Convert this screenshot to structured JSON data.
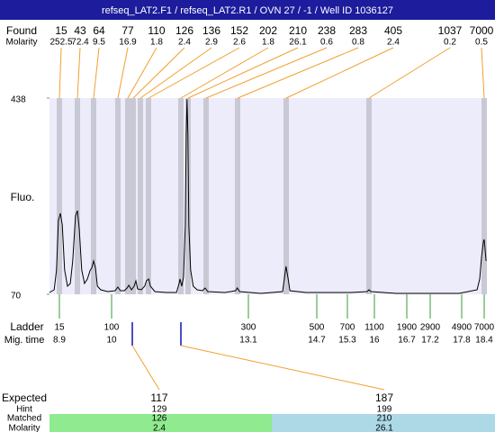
{
  "title": "refseq_LAT2.F1 / refseq_LAT2.R1 / OVN 27 / -1 / Well ID 1036127",
  "found": {
    "label": "Found",
    "molarity_label": "Molarity",
    "sizes": [
      15,
      43,
      64,
      77,
      110,
      126,
      136,
      152,
      202,
      210,
      238,
      283,
      405,
      1037,
      7000
    ],
    "molarity": [
      252.5,
      72.4,
      9.5,
      16.9,
      1.8,
      2.4,
      2.9,
      2.6,
      1.8,
      26.1,
      0.6,
      0.8,
      2.4,
      0.2,
      0.5
    ]
  },
  "chart_data": {
    "type": "line",
    "y_label": "Fluo.",
    "color": "#000000",
    "ylim": [
      70,
      438
    ],
    "yticks": [
      70,
      438
    ],
    "x": [
      8.69,
      8.79,
      8.84,
      8.88,
      8.92,
      8.96,
      9.01,
      9.07,
      9.13,
      9.18,
      9.24,
      9.28,
      9.32,
      9.37,
      9.43,
      9.49,
      9.55,
      9.58,
      9.62,
      9.66,
      9.7,
      9.77,
      9.92,
      10.08,
      10.14,
      10.2,
      10.29,
      10.35,
      10.39,
      10.45,
      10.51,
      10.55,
      10.59,
      10.67,
      10.75,
      10.79,
      10.84,
      10.88,
      10.98,
      11.24,
      11.47,
      11.53,
      11.55,
      11.59,
      11.63,
      11.67,
      11.69,
      11.71,
      11.73,
      11.75,
      11.79,
      11.85,
      11.94,
      12.06,
      12.12,
      12.18,
      12.57,
      12.81,
      12.85,
      12.9,
      13.39,
      13.9,
      13.94,
      13.98,
      14.03,
      14.07,
      14.45,
      14.84,
      15.39,
      15.81,
      15.86,
      15.91,
      16.47,
      17.23,
      17.75,
      18.21,
      18.28,
      18.33,
      18.38,
      18.4,
      18.42,
      18.45
    ],
    "values": [
      73.4,
      78.4,
      115.6,
      208.4,
      221.9,
      200,
      115.6,
      85.2,
      90.3,
      132.5,
      216.9,
      227,
      191.5,
      115.6,
      90.3,
      98.7,
      115.6,
      119,
      132.5,
      119,
      85.2,
      78.4,
      75,
      76.8,
      83.5,
      76.8,
      76.8,
      81.8,
      86.9,
      78.4,
      85.2,
      95.3,
      80.1,
      78.4,
      85.2,
      95.3,
      98.7,
      85.2,
      75,
      73.4,
      73.4,
      90.3,
      98.7,
      85.2,
      102,
      200,
      368.8,
      436,
      368.8,
      200,
      115.6,
      85.2,
      78.4,
      76.8,
      81.8,
      75,
      73.4,
      76.8,
      81.8,
      75,
      71.7,
      75,
      98.7,
      122.3,
      98.7,
      76.8,
      73.4,
      73.4,
      73.4,
      75,
      78.4,
      75,
      71.7,
      71.7,
      71.7,
      78.4,
      98.7,
      140.9,
      169.6,
      173,
      157.8,
      132.5
    ]
  },
  "ladder": {
    "label": "Ladder",
    "time_label": "Mig. time",
    "sizes": [
      15,
      100,
      300,
      500,
      700,
      1100,
      1900,
      2900,
      4900,
      7000
    ],
    "times": [
      8.9,
      10,
      13.1,
      14.7,
      15.3,
      16,
      16.7,
      17.2,
      17.8,
      18.4
    ]
  },
  "expected": {
    "label": "Expected",
    "hint_label": "Hint",
    "matched_label": "Matched",
    "molarity_label": "Molarity",
    "columns": [
      {
        "expected": 117,
        "hint": 129,
        "matched": 126,
        "molarity": 2.4
      },
      {
        "expected": 187,
        "hint": 199,
        "matched": 210,
        "molarity": 26.1
      }
    ]
  }
}
